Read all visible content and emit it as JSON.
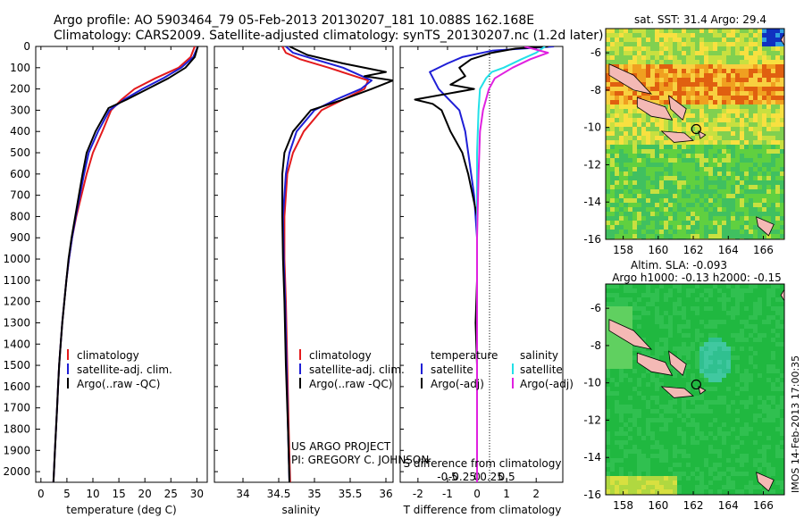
{
  "header": {
    "line1": "Argo profile: AO 5903464_79 05-Feb-2013 20130207_181 10.088S 162.168E",
    "line2": "Climatology: CARS2009. Satellite-adjusted climatology: synTS_20130207.nc (1.2d later)"
  },
  "watermark": "IMOS 14-Feb-2013 17:00:35",
  "credit": {
    "line1": "US ARGO PROJECT",
    "line2": "PI: GREGORY C. JOHNSON"
  },
  "colors": {
    "climatology": "#e31a1c",
    "satellite": "#1f1fd6",
    "argo": "#000000",
    "sal_satellite": "#22e0e8",
    "sal_argo": "#e020e0"
  },
  "chart_data": [
    {
      "id": "temperature",
      "type": "line",
      "xlabel": "temperature (deg C)",
      "ylabel": "",
      "xlim": [
        -1,
        32
      ],
      "ylim": [
        2050,
        0
      ],
      "xticks": [
        0,
        5,
        10,
        15,
        20,
        25,
        30
      ],
      "yticks": [
        0,
        100,
        200,
        300,
        400,
        500,
        600,
        700,
        800,
        900,
        1000,
        1100,
        1200,
        1300,
        1400,
        1500,
        1600,
        1700,
        1800,
        1900,
        2000
      ],
      "legend": [
        "climatology",
        "satellite-adj. clim.",
        "Argo(..raw -QC)"
      ],
      "legend_position": "lower-center",
      "series": [
        {
          "name": "climatology",
          "color": "#e31a1c",
          "points": [
            [
              29.6,
              0
            ],
            [
              28.8,
              50
            ],
            [
              26.5,
              100
            ],
            [
              22,
              150
            ],
            [
              18,
              200
            ],
            [
              15.5,
              250
            ],
            [
              13.5,
              300
            ],
            [
              11.8,
              400
            ],
            [
              10,
              500
            ],
            [
              8.8,
              600
            ],
            [
              7.8,
              700
            ],
            [
              6.8,
              800
            ],
            [
              6,
              900
            ],
            [
              5.4,
              1000
            ],
            [
              4.9,
              1100
            ],
            [
              4.5,
              1200
            ],
            [
              4.1,
              1300
            ],
            [
              3.8,
              1400
            ],
            [
              3.5,
              1500
            ],
            [
              3.3,
              1600
            ],
            [
              3.1,
              1700
            ],
            [
              2.9,
              1800
            ],
            [
              2.7,
              1900
            ],
            [
              2.5,
              2000
            ],
            [
              2.4,
              2050
            ]
          ]
        },
        {
          "name": "satellite-adj. clim.",
          "color": "#1f1fd6",
          "points": [
            [
              30.2,
              0
            ],
            [
              29.3,
              50
            ],
            [
              27,
              100
            ],
            [
              23.5,
              150
            ],
            [
              19.5,
              200
            ],
            [
              16,
              250
            ],
            [
              13.2,
              300
            ],
            [
              11,
              400
            ],
            [
              9.2,
              500
            ],
            [
              8.3,
              600
            ],
            [
              7.5,
              700
            ],
            [
              6.7,
              800
            ],
            [
              6,
              900
            ],
            [
              5.4,
              1000
            ],
            [
              4.9,
              1100
            ],
            [
              4.5,
              1200
            ],
            [
              4.1,
              1300
            ],
            [
              3.8,
              1400
            ],
            [
              3.5,
              1500
            ],
            [
              3.3,
              1600
            ],
            [
              3.1,
              1700
            ],
            [
              2.9,
              1800
            ],
            [
              2.7,
              1900
            ],
            [
              2.5,
              2000
            ],
            [
              2.4,
              2050
            ]
          ]
        },
        {
          "name": "Argo(..raw -QC)",
          "color": "#000000",
          "points": [
            [
              30.2,
              0
            ],
            [
              29.6,
              50
            ],
            [
              27.8,
              100
            ],
            [
              24.5,
              150
            ],
            [
              20.5,
              200
            ],
            [
              16.5,
              250
            ],
            [
              13,
              290
            ],
            [
              10.5,
              400
            ],
            [
              8.8,
              500
            ],
            [
              8,
              600
            ],
            [
              7.3,
              700
            ],
            [
              6.6,
              800
            ],
            [
              5.9,
              900
            ],
            [
              5.3,
              1000
            ],
            [
              4.9,
              1100
            ],
            [
              4.5,
              1200
            ],
            [
              4.1,
              1300
            ],
            [
              3.8,
              1400
            ],
            [
              3.5,
              1500
            ],
            [
              3.3,
              1600
            ],
            [
              3.1,
              1700
            ],
            [
              2.9,
              1800
            ],
            [
              2.7,
              1900
            ],
            [
              2.5,
              2000
            ],
            [
              2.4,
              2050
            ]
          ]
        }
      ]
    },
    {
      "id": "salinity",
      "type": "line",
      "xlabel": "salinity",
      "xlim": [
        33.6,
        36.1
      ],
      "ylim": [
        2050,
        0
      ],
      "xticks": [
        34,
        34.5,
        35,
        35.5,
        36
      ],
      "legend": [
        "climatology",
        "satellite-adj. clim.",
        "Argo(..raw -QC)"
      ],
      "legend_position": "lower-center",
      "series": [
        {
          "name": "climatology",
          "color": "#e31a1c",
          "points": [
            [
              34.55,
              0
            ],
            [
              34.6,
              30
            ],
            [
              34.8,
              60
            ],
            [
              35.2,
              100
            ],
            [
              35.75,
              160
            ],
            [
              35.7,
              200
            ],
            [
              35.4,
              250
            ],
            [
              35.1,
              300
            ],
            [
              34.85,
              400
            ],
            [
              34.7,
              500
            ],
            [
              34.62,
              600
            ],
            [
              34.58,
              800
            ],
            [
              34.58,
              1000
            ],
            [
              34.6,
              1200
            ],
            [
              34.62,
              1500
            ],
            [
              34.64,
              1800
            ],
            [
              34.66,
              2050
            ]
          ]
        },
        {
          "name": "satellite-adj. clim.",
          "color": "#1f1fd6",
          "points": [
            [
              34.6,
              0
            ],
            [
              34.7,
              30
            ],
            [
              35,
              60
            ],
            [
              35.4,
              100
            ],
            [
              35.8,
              160
            ],
            [
              35.65,
              200
            ],
            [
              35.3,
              250
            ],
            [
              35,
              300
            ],
            [
              34.75,
              400
            ],
            [
              34.65,
              500
            ],
            [
              34.6,
              600
            ],
            [
              34.56,
              800
            ],
            [
              34.57,
              1000
            ],
            [
              34.59,
              1200
            ],
            [
              34.61,
              1500
            ],
            [
              34.63,
              1800
            ],
            [
              34.65,
              2050
            ]
          ]
        },
        {
          "name": "Argo(..raw -QC)",
          "color": "#000000",
          "points": [
            [
              34.65,
              0
            ],
            [
              34.9,
              40
            ],
            [
              35.4,
              80
            ],
            [
              36,
              120
            ],
            [
              35.7,
              140
            ],
            [
              36.1,
              160
            ],
            [
              35.8,
              200
            ],
            [
              35.4,
              250
            ],
            [
              34.95,
              300
            ],
            [
              34.7,
              400
            ],
            [
              34.58,
              500
            ],
            [
              34.55,
              600
            ],
            [
              34.55,
              800
            ],
            [
              34.56,
              1000
            ],
            [
              34.58,
              1200
            ],
            [
              34.6,
              1500
            ],
            [
              34.63,
              1800
            ],
            [
              34.65,
              2050
            ]
          ]
        }
      ]
    },
    {
      "id": "difference",
      "type": "line",
      "xlabel": "T difference from climatology",
      "xlabel_top": "S difference from climatology",
      "xlim": [
        -2.6,
        2.9
      ],
      "ylim": [
        2050,
        0
      ],
      "xticks": [
        -2,
        -1,
        0,
        1,
        2
      ],
      "s_ticks": [
        -0.5,
        -0.25,
        0,
        0.25,
        0.5
      ],
      "s_tick_labels": [
        "-0.5",
        "-0.25",
        "0",
        "0.25",
        "0.5"
      ],
      "legend_titles": [
        "temperature",
        "salinity"
      ],
      "legend": [
        "satellite",
        "Argo(-adj)",
        "satellite",
        "Argo(-adj)"
      ],
      "legend_position": "lower-center",
      "series": [
        {
          "name": "T satellite",
          "color": "#1f1fd6",
          "points": [
            [
              2.6,
              0
            ],
            [
              0.5,
              20
            ],
            [
              -0.5,
              50
            ],
            [
              -1,
              80
            ],
            [
              -1.6,
              120
            ],
            [
              -1.3,
              200
            ],
            [
              -0.6,
              300
            ],
            [
              -0.4,
              400
            ],
            [
              -0.3,
              500
            ],
            [
              -0.2,
              600
            ],
            [
              -0.1,
              700
            ],
            [
              0,
              900
            ],
            [
              0,
              1200
            ],
            [
              0,
              1500
            ],
            [
              0,
              2050
            ]
          ]
        },
        {
          "name": "T Argo(-adj)",
          "color": "#000000",
          "points": [
            [
              2.4,
              0
            ],
            [
              1.3,
              10
            ],
            [
              0.5,
              30
            ],
            [
              -0.2,
              60
            ],
            [
              -0.6,
              100
            ],
            [
              -0.4,
              140
            ],
            [
              -0.9,
              180
            ],
            [
              -0.1,
              200
            ],
            [
              -2.1,
              250
            ],
            [
              -1.5,
              270
            ],
            [
              -1.2,
              300
            ],
            [
              -0.9,
              400
            ],
            [
              -0.5,
              500
            ],
            [
              -0.3,
              600
            ],
            [
              -0.15,
              700
            ],
            [
              0,
              800
            ],
            [
              0,
              1100
            ],
            [
              -0.05,
              1300
            ],
            [
              0,
              1500
            ],
            [
              0,
              2050
            ]
          ]
        },
        {
          "name": "S satellite",
          "color": "#22e0e8",
          "points": [
            [
              2.3,
              0
            ],
            [
              2,
              30
            ],
            [
              1.5,
              60
            ],
            [
              0.9,
              100
            ],
            [
              0.5,
              120
            ],
            [
              0.3,
              150
            ],
            [
              0.1,
              200
            ],
            [
              0.05,
              300
            ],
            [
              0,
              500
            ],
            [
              0,
              800
            ],
            [
              0,
              2050
            ]
          ]
        },
        {
          "name": "S Argo(-adj)",
          "color": "#e020e0",
          "points": [
            [
              1.6,
              0
            ],
            [
              2.4,
              30
            ],
            [
              1.8,
              60
            ],
            [
              1.2,
              100
            ],
            [
              0.6,
              150
            ],
            [
              0.4,
              200
            ],
            [
              0.2,
              300
            ],
            [
              0.1,
              400
            ],
            [
              0.05,
              600
            ],
            [
              0,
              900
            ],
            [
              0,
              2050
            ]
          ]
        }
      ]
    },
    {
      "id": "sst-map",
      "type": "heatmap",
      "title": "sat. SST: 31.4  Argo: 29.4",
      "xlim": [
        157,
        167.2
      ],
      "ylim": [
        -16,
        -4.7
      ],
      "xticks": [
        158,
        160,
        162,
        164,
        166
      ],
      "yticks": [
        -6,
        -8,
        -10,
        -12,
        -14,
        -16
      ],
      "argo_position": [
        162.168,
        -10.088
      ]
    },
    {
      "id": "sla-map",
      "type": "heatmap",
      "title": "Altim. SLA: -0.093",
      "subtitle": "Argo h1000: -0.13  h2000: -0.15",
      "xlim": [
        157,
        167.2
      ],
      "ylim": [
        -16,
        -4.7
      ],
      "xticks": [
        158,
        160,
        162,
        164,
        166
      ],
      "yticks": [
        -6,
        -8,
        -10,
        -12,
        -14,
        -16
      ],
      "argo_position": [
        162.168,
        -10.088
      ]
    }
  ]
}
